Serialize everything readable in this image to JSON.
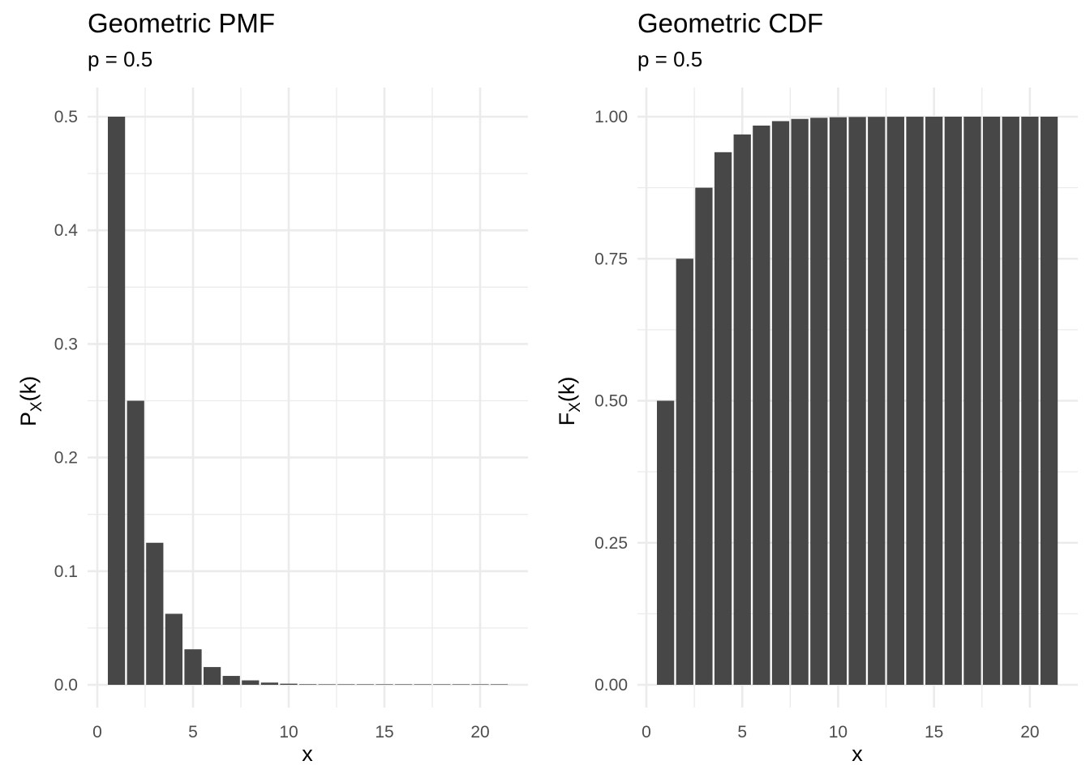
{
  "chart_data": [
    {
      "type": "bar",
      "title": "Geometric PMF",
      "subtitle": "p = 0.5",
      "xlabel": "x",
      "ylabel_main": "P",
      "ylabel_sub": "X",
      "ylabel_arg": "(k)",
      "xlim": [
        0,
        22
      ],
      "ylim": [
        0,
        0.5
      ],
      "xticks": [
        0,
        5,
        10,
        15,
        20
      ],
      "xtick_labels": [
        "0",
        "5",
        "10",
        "15",
        "20"
      ],
      "yticks": [
        0,
        0.1,
        0.2,
        0.3,
        0.4,
        0.5
      ],
      "ytick_labels": [
        "0.0",
        "0.1",
        "0.2",
        "0.3",
        "0.4",
        "0.5"
      ],
      "grid": true,
      "bar_color": "#474747",
      "x": [
        1,
        2,
        3,
        4,
        5,
        6,
        7,
        8,
        9,
        10,
        11,
        12,
        13,
        14,
        15,
        16,
        17,
        18,
        19,
        20,
        21
      ],
      "values": [
        0.5,
        0.25,
        0.125,
        0.0625,
        0.03125,
        0.015625,
        0.0078125,
        0.00390625,
        0.001953125,
        0.0009765625,
        0.00048828125,
        0.000244140625,
        0.0001220703125,
        6.103515625e-05,
        3.0517578125e-05,
        1.52587890625e-05,
        7.62939453125e-06,
        3.814697265625e-06,
        1.9073486328125e-06,
        9.5367431640625e-07,
        4.76837158203125e-07
      ]
    },
    {
      "type": "bar",
      "title": "Geometric CDF",
      "subtitle": "p = 0.5",
      "xlabel": "x",
      "ylabel_main": "F",
      "ylabel_sub": "X",
      "ylabel_arg": "(k)",
      "xlim": [
        0,
        22
      ],
      "ylim": [
        0,
        1
      ],
      "xticks": [
        0,
        5,
        10,
        15,
        20
      ],
      "xtick_labels": [
        "0",
        "5",
        "10",
        "15",
        "20"
      ],
      "yticks": [
        0,
        0.25,
        0.5,
        0.75,
        1
      ],
      "ytick_labels": [
        "0.00",
        "0.25",
        "0.50",
        "0.75",
        "1.00"
      ],
      "grid": true,
      "bar_color": "#474747",
      "x": [
        1,
        2,
        3,
        4,
        5,
        6,
        7,
        8,
        9,
        10,
        11,
        12,
        13,
        14,
        15,
        16,
        17,
        18,
        19,
        20,
        21
      ],
      "values": [
        0.5,
        0.75,
        0.875,
        0.9375,
        0.96875,
        0.984375,
        0.9921875,
        0.99609375,
        0.998046875,
        0.9990234375,
        0.99951171875,
        0.999755859375,
        0.9998779296875,
        0.99993896484375,
        0.999969482421875,
        0.9999847412109375,
        0.9999923706054688,
        0.9999961853027344,
        0.9999980926513672,
        0.9999990463256836,
        0.9999995231628418
      ]
    }
  ]
}
